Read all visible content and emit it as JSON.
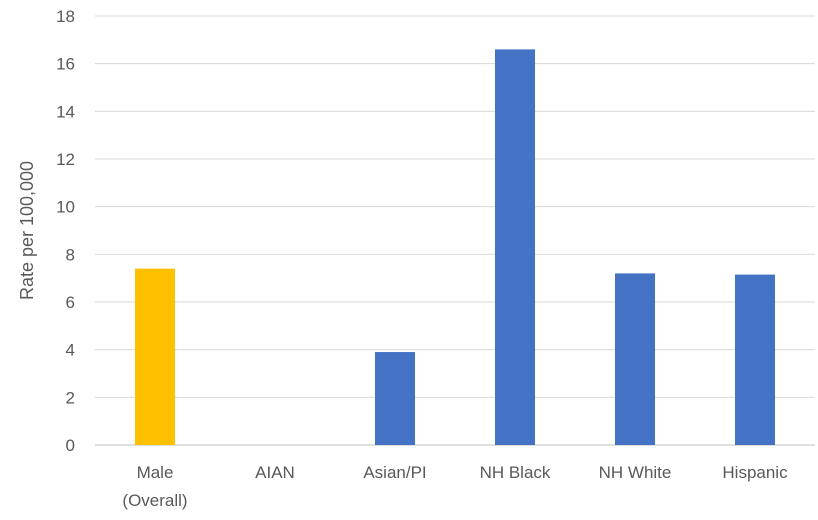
{
  "chart_data": {
    "type": "bar",
    "title": "",
    "xlabel": "",
    "ylabel": "Rate per 100,000",
    "ylim": [
      0,
      18
    ],
    "yticks": [
      0,
      2,
      4,
      6,
      8,
      10,
      12,
      14,
      16,
      18
    ],
    "grid": true,
    "legend": "none",
    "categories": [
      [
        "Male",
        "(Overall)"
      ],
      [
        "AIAN"
      ],
      [
        "Asian/PI"
      ],
      [
        "NH Black"
      ],
      [
        "NH White"
      ],
      [
        "Hispanic"
      ]
    ],
    "values": [
      7.4,
      0,
      3.9,
      16.6,
      7.2,
      7.15
    ],
    "colors": [
      "#FFC000",
      "#4472C4",
      "#4472C4",
      "#4472C4",
      "#4472C4",
      "#4472C4"
    ]
  }
}
